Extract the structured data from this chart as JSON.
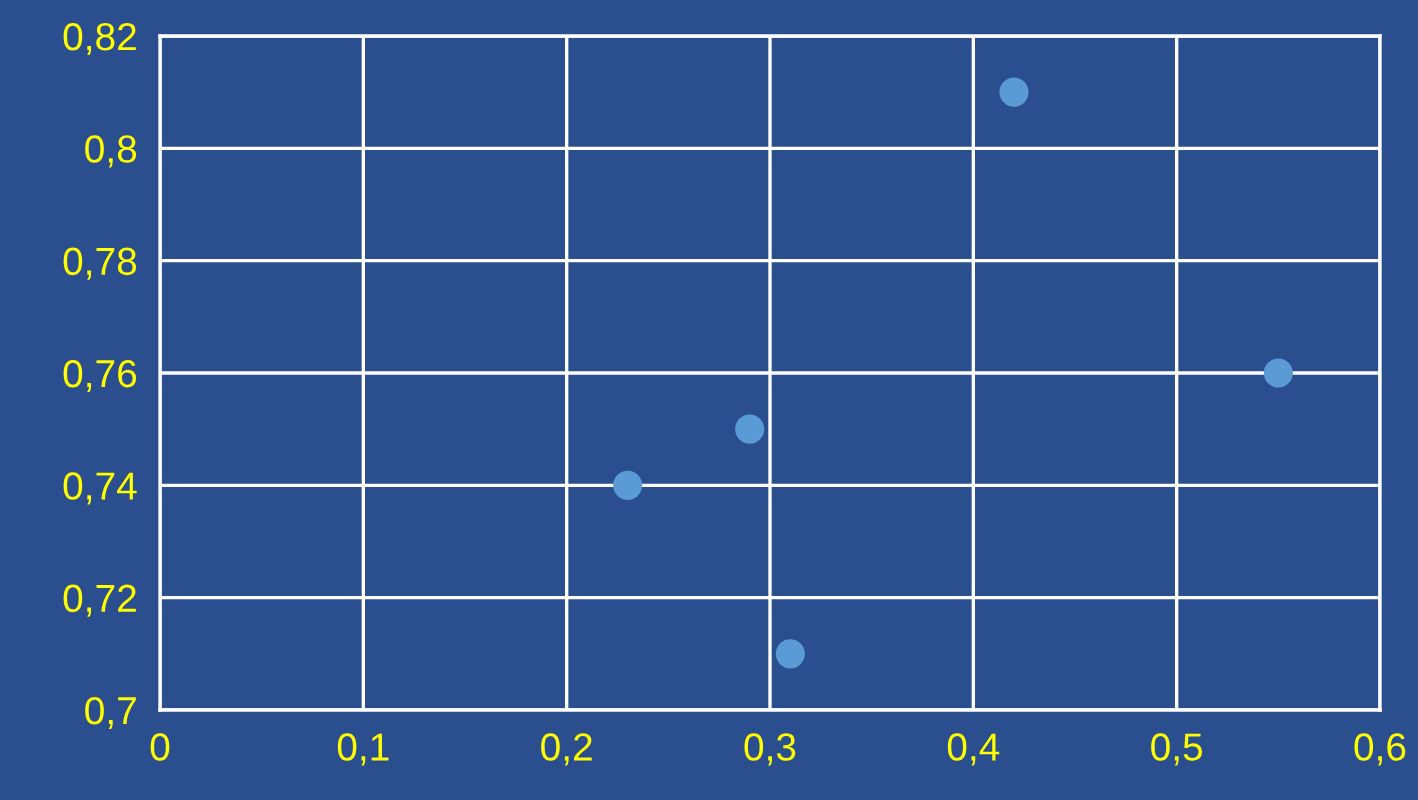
{
  "chart_data": {
    "type": "scatter",
    "x": [
      0.23,
      0.29,
      0.31,
      0.42,
      0.55
    ],
    "values": [
      0.74,
      0.75,
      0.71,
      0.81,
      0.76
    ],
    "color": "#5b9bd5",
    "marker": "circle",
    "xlim": [
      0,
      0.6
    ],
    "ylim": [
      0.7,
      0.82
    ],
    "xticks": [
      0,
      {
        "value": 0.1,
        "label": "0,1"
      },
      {
        "value": 0.2,
        "label": "0,2"
      },
      {
        "value": 0.3,
        "label": "0,3"
      },
      {
        "value": 0.4,
        "label": "0,4"
      },
      {
        "value": 0.5,
        "label": "0,5"
      },
      {
        "value": 0.6,
        "label": "0,6"
      }
    ],
    "yticks": [
      {
        "value": 0.7,
        "label": "0,7"
      },
      {
        "value": 0.72,
        "label": "0,72"
      },
      {
        "value": 0.74,
        "label": "0,74"
      },
      {
        "value": 0.76,
        "label": "0,76"
      },
      {
        "value": 0.78,
        "label": "0,78"
      },
      {
        "value": 0.8,
        "label": "0,8"
      },
      {
        "value": 0.82,
        "label": "0,82"
      }
    ],
    "grid": true
  }
}
